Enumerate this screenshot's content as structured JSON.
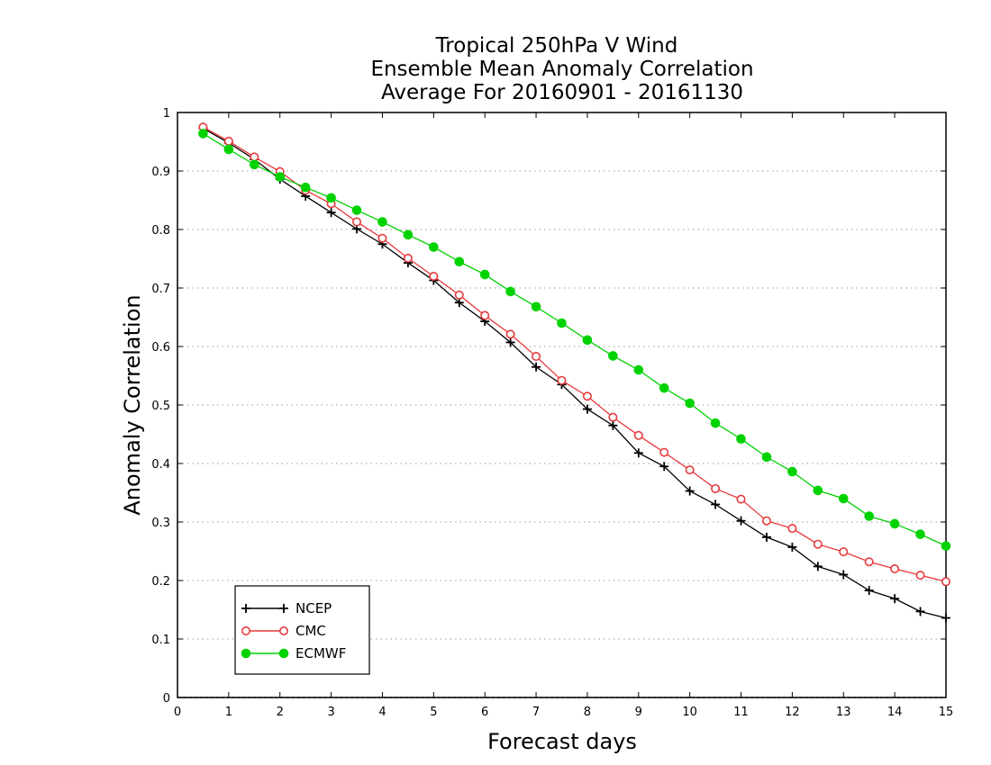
{
  "chart_data": {
    "type": "line",
    "title_lines": [
      "Tropical 250hPa V Wind",
      "Ensemble Mean Anomaly Correlation",
      "Average For 20160901 - 20161130"
    ],
    "xlabel": "Forecast days",
    "ylabel": "Anomaly Correlation",
    "xlim": [
      0,
      15
    ],
    "ylim": [
      0,
      1
    ],
    "x_ticks": [
      0,
      1,
      2,
      3,
      4,
      5,
      6,
      7,
      8,
      9,
      10,
      11,
      12,
      13,
      14,
      15
    ],
    "y_ticks": [
      0,
      0.1,
      0.2,
      0.3,
      0.4,
      0.5,
      0.6,
      0.7,
      0.8,
      0.9,
      1
    ],
    "grid": "horizontal dotted",
    "legend_position": "bottom-left",
    "x": [
      0.5,
      1,
      1.5,
      2,
      2.5,
      3,
      3.5,
      4,
      4.5,
      5,
      5.5,
      6,
      6.5,
      7,
      7.5,
      8,
      8.5,
      9,
      9.5,
      10,
      10.5,
      11,
      11.5,
      12,
      12.5,
      13,
      13.5,
      14,
      14.5,
      15
    ],
    "series": [
      {
        "name": "NCEP",
        "color": "#000000",
        "marker": "plus",
        "values": [
          0.973,
          0.948,
          0.92,
          0.886,
          0.857,
          0.829,
          0.801,
          0.775,
          0.743,
          0.713,
          0.675,
          0.643,
          0.607,
          0.565,
          0.535,
          0.493,
          0.465,
          0.418,
          0.395,
          0.353,
          0.33,
          0.302,
          0.274,
          0.257,
          0.224,
          0.21,
          0.183,
          0.169,
          0.147,
          0.136
        ]
      },
      {
        "name": "CMC",
        "color": "#e8383c",
        "marker": "open-circle",
        "values": [
          0.975,
          0.951,
          0.924,
          0.899,
          0.867,
          0.844,
          0.813,
          0.785,
          0.751,
          0.72,
          0.688,
          0.653,
          0.621,
          0.583,
          0.542,
          0.515,
          0.479,
          0.448,
          0.419,
          0.389,
          0.357,
          0.339,
          0.302,
          0.289,
          0.262,
          0.249,
          0.232,
          0.22,
          0.209,
          0.198
        ]
      },
      {
        "name": "ECMWF",
        "color": "#00d200",
        "marker": "filled-circle",
        "values": [
          0.964,
          0.937,
          0.911,
          0.89,
          0.872,
          0.854,
          0.833,
          0.813,
          0.791,
          0.77,
          0.745,
          0.723,
          0.694,
          0.668,
          0.64,
          0.611,
          0.584,
          0.56,
          0.529,
          0.503,
          0.469,
          0.442,
          0.411,
          0.386,
          0.354,
          0.34,
          0.31,
          0.297,
          0.279,
          0.259
        ]
      }
    ]
  }
}
